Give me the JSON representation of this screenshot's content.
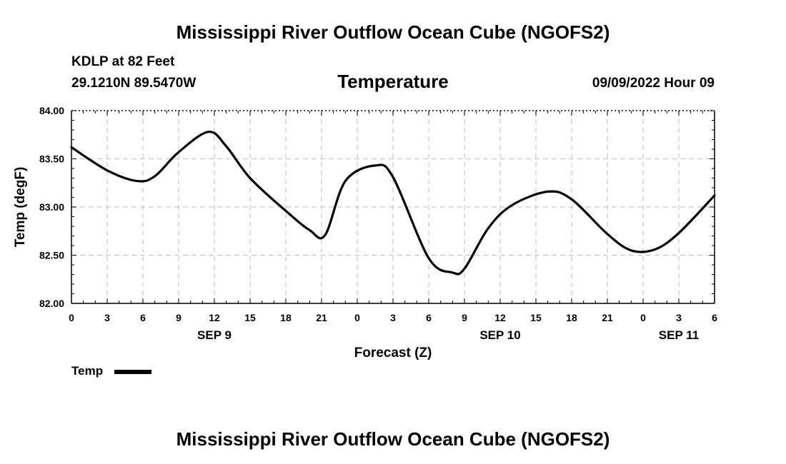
{
  "header": {
    "main_title": "Mississippi River Outflow Ocean Cube (NGOFS2)",
    "station": "KDLP at 82 Feet",
    "coords": "29.1210N  89.5470W",
    "plot_title": "Temperature",
    "datetime": "09/09/2022 Hour 09"
  },
  "legend": {
    "label": "Temp"
  },
  "footer": {
    "title": "Mississippi River Outflow Ocean Cube (NGOFS2)"
  },
  "chart_data": {
    "type": "line",
    "title": "Temperature",
    "xlabel": "Forecast (Z)",
    "ylabel": "Temp (degF)",
    "xlim": [
      0,
      54
    ],
    "ylim": [
      82.0,
      84.0
    ],
    "grid": true,
    "yticks": [
      "82.00",
      "82.50",
      "83.00",
      "83.50",
      "84.00"
    ],
    "ytick_values": [
      82.0,
      82.5,
      83.0,
      83.5,
      84.0
    ],
    "xtick_hours": [
      0,
      3,
      6,
      9,
      12,
      15,
      18,
      21,
      24,
      27,
      30,
      33,
      36,
      39,
      42,
      45,
      48,
      51,
      54
    ],
    "xtick_labels": [
      "0",
      "3",
      "6",
      "9",
      "12",
      "15",
      "18",
      "21",
      "0",
      "3",
      "6",
      "9",
      "12",
      "15",
      "18",
      "21",
      "0",
      "3",
      "6"
    ],
    "day_labels": [
      {
        "label": "SEP 9",
        "hour": 12
      },
      {
        "label": "SEP 10",
        "hour": 36
      },
      {
        "label": "SEP 11",
        "hour": 51
      }
    ],
    "series": [
      {
        "name": "Temp",
        "color": "#000000",
        "x": [
          0,
          3,
          5.5,
          7,
          9,
          11.5,
          13,
          15,
          18,
          20,
          21.3,
          23,
          25.5,
          27,
          30,
          32,
          33,
          35,
          37,
          40,
          42,
          45,
          47,
          49,
          51,
          54
        ],
        "y": [
          83.62,
          83.38,
          83.27,
          83.32,
          83.57,
          83.78,
          83.63,
          83.3,
          82.96,
          82.76,
          82.71,
          83.27,
          83.43,
          83.31,
          82.47,
          82.32,
          82.36,
          82.78,
          83.02,
          83.16,
          83.08,
          82.72,
          82.55,
          82.56,
          82.73,
          83.12
        ]
      }
    ]
  }
}
